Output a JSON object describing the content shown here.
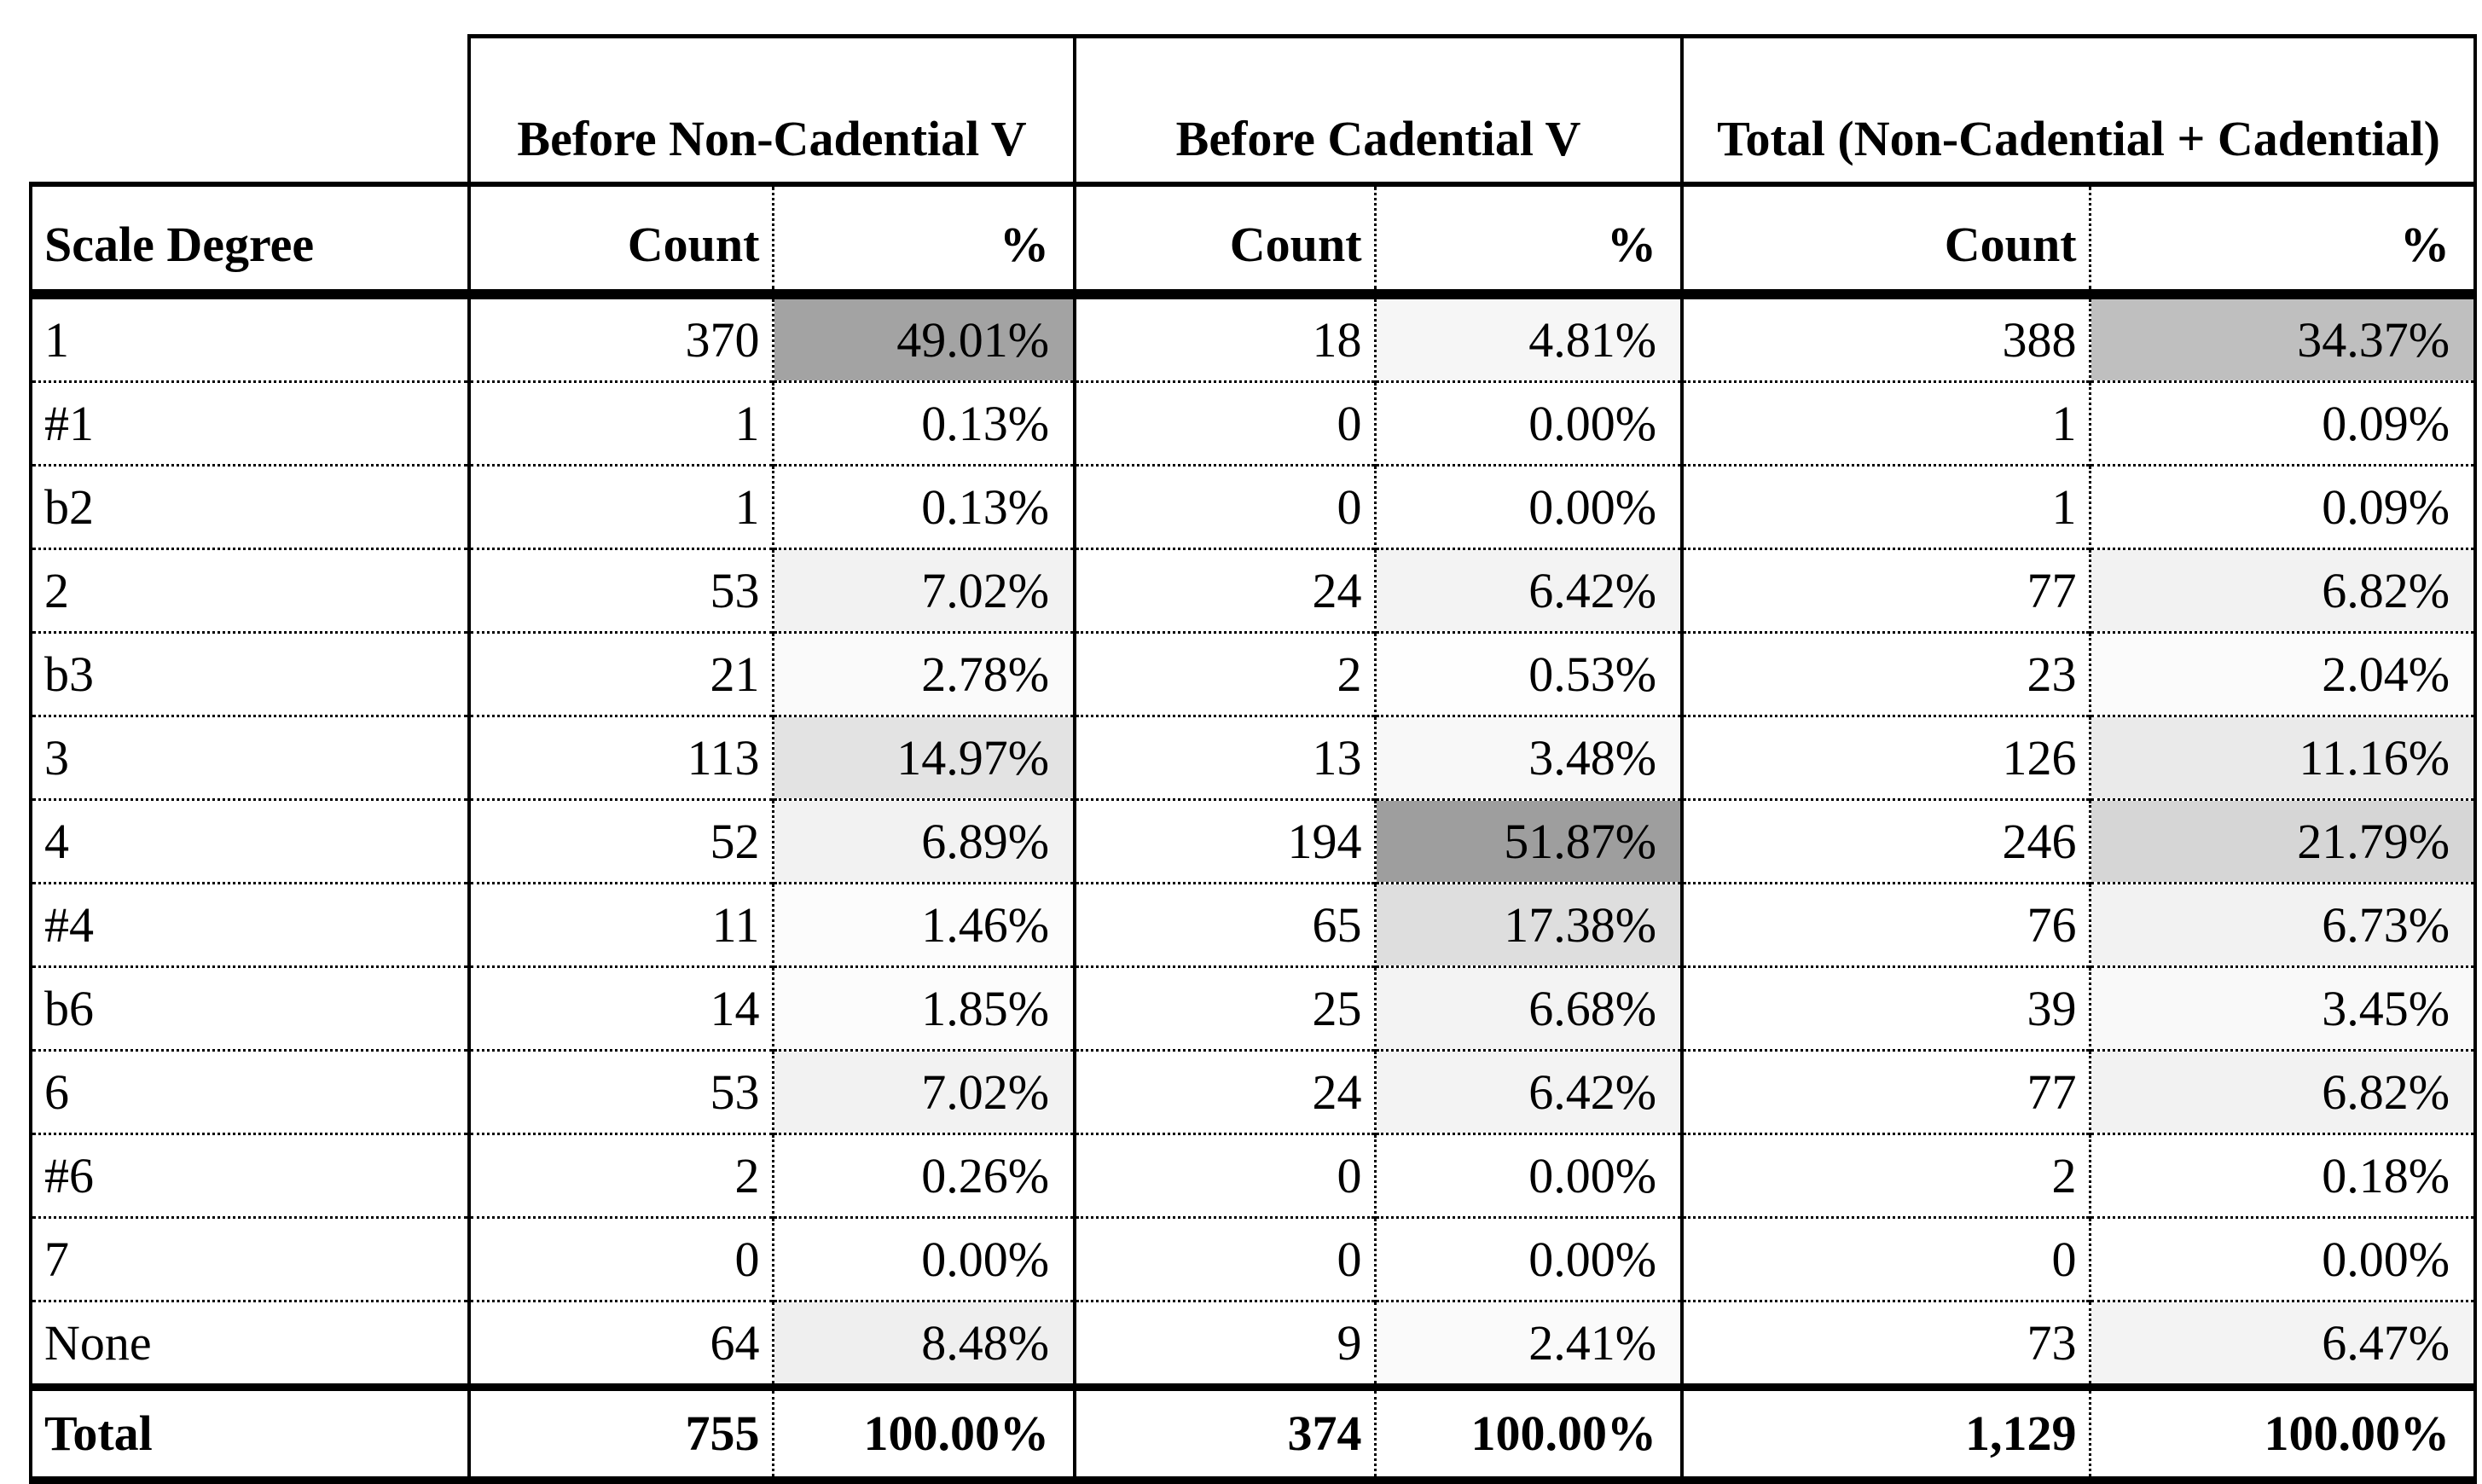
{
  "chart_data": {
    "type": "table",
    "row_header_label": "Scale Degree",
    "sub_column_labels": [
      "Count",
      "%"
    ],
    "total_label": "Total",
    "row_labels": [
      "1",
      "#1",
      "b2",
      "2",
      "b3",
      "3",
      "4",
      "#4",
      "b6",
      "6",
      "#6",
      "7",
      "None",
      "Total"
    ],
    "series": [
      {
        "name": "Before Non-Cadential V",
        "count": [
          370,
          1,
          1,
          53,
          21,
          113,
          52,
          11,
          14,
          53,
          2,
          0,
          64,
          755
        ],
        "pct": [
          49.01,
          0.13,
          0.13,
          7.02,
          2.78,
          14.97,
          6.89,
          1.46,
          1.85,
          7.02,
          0.26,
          0.0,
          8.48,
          100.0
        ]
      },
      {
        "name": "Before Cadential V",
        "count": [
          18,
          0,
          0,
          24,
          2,
          13,
          194,
          65,
          25,
          24,
          0,
          0,
          9,
          374
        ],
        "pct": [
          4.81,
          0.0,
          0.0,
          6.42,
          0.53,
          3.48,
          51.87,
          17.38,
          6.68,
          6.42,
          0.0,
          0.0,
          2.41,
          100.0
        ]
      },
      {
        "name": "Total (Non-Cadential + Cadential)",
        "count": [
          388,
          1,
          1,
          77,
          23,
          126,
          246,
          76,
          39,
          77,
          2,
          0,
          73,
          1129
        ],
        "pct": [
          34.37,
          0.09,
          0.09,
          6.82,
          2.04,
          11.16,
          21.79,
          6.73,
          3.45,
          6.82,
          0.18,
          0.0,
          6.47,
          100.0
        ]
      }
    ],
    "heat_scale": {
      "applies_to": "percent-cells-of-data-rows",
      "min_color": "#FFFFFF",
      "max_color": "#9E9E9E",
      "domain": [
        0,
        51.87
      ]
    },
    "layout_hints": {
      "row_separator": "dotted",
      "count_percent_separator": "dotted",
      "group_separator": "solid",
      "grid": true,
      "legend_position": "none"
    }
  },
  "style": {
    "text_color": "#000000",
    "border_color": "#000000",
    "background_color": "#FFFFFF"
  }
}
